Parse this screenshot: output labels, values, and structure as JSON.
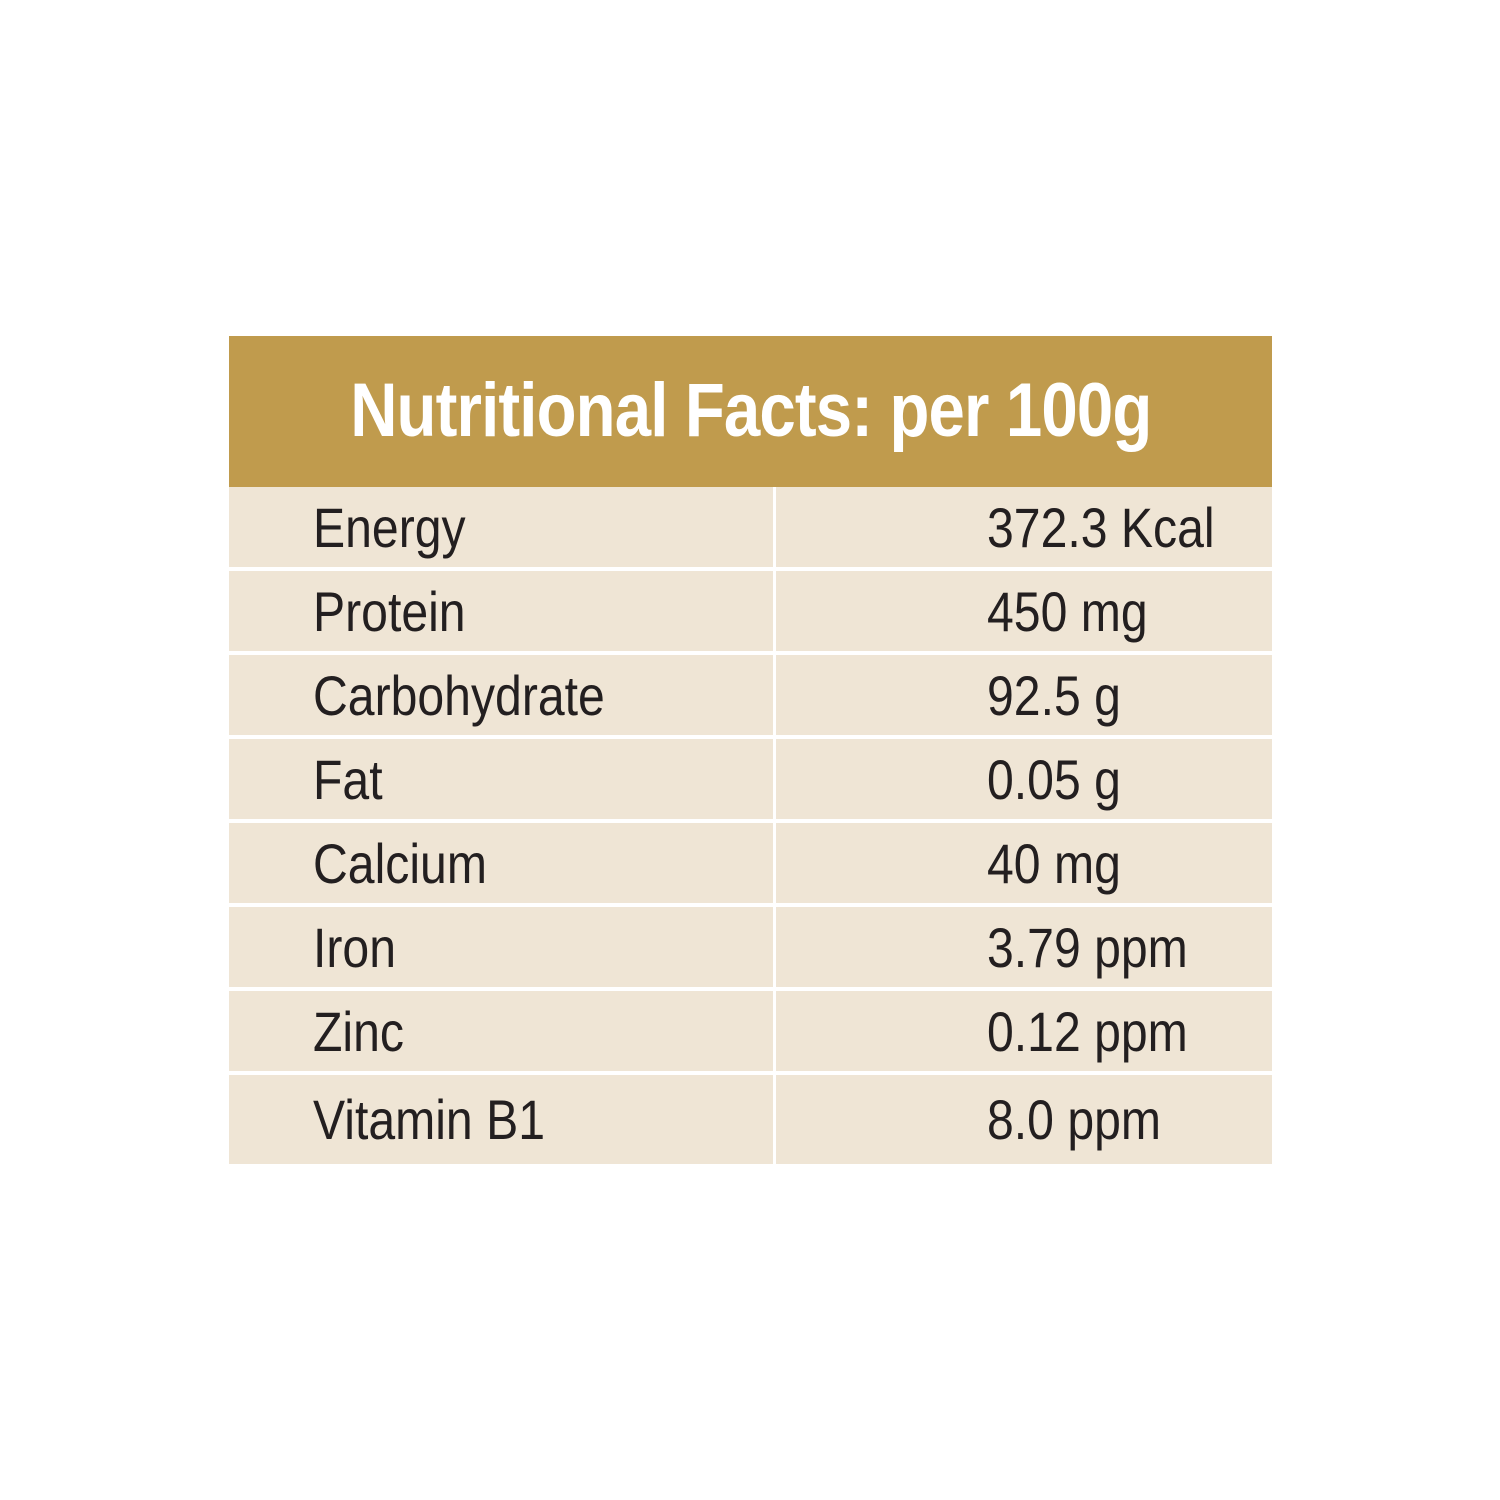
{
  "header": {
    "title": "Nutritional Facts: per 100g"
  },
  "colors": {
    "header_background": "#c09b4d",
    "row_background": "#efe5d5",
    "text": "#231f20"
  },
  "rows": [
    {
      "name": "Energy",
      "value": "372.3 Kcal"
    },
    {
      "name": "Protein",
      "value": "450 mg"
    },
    {
      "name": "Carbohydrate",
      "value": "92.5 g"
    },
    {
      "name": "Fat",
      "value": "0.05 g"
    },
    {
      "name": "Calcium",
      "value": "40 mg"
    },
    {
      "name": "Iron",
      "value": "3.79 ppm"
    },
    {
      "name": "Zinc",
      "value": "0.12 ppm"
    },
    {
      "name": "Vitamin B1",
      "value": "8.0 ppm"
    }
  ]
}
